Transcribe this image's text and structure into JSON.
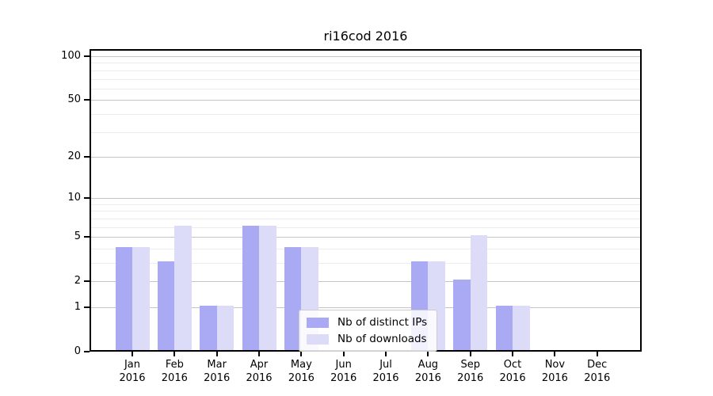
{
  "title": "ri16cod 2016",
  "chart_data": {
    "type": "bar",
    "title": "ri16cod 2016",
    "categories": [
      "Jan",
      "Feb",
      "Mar",
      "Apr",
      "May",
      "Jun",
      "Jul",
      "Aug",
      "Sep",
      "Oct",
      "Nov",
      "Dec"
    ],
    "year": "2016",
    "series": [
      {
        "name": "Nb of distinct IPs",
        "color": "#a9a9f4",
        "values": [
          4,
          3,
          1,
          6,
          4,
          0,
          0,
          3,
          2,
          1,
          0,
          0
        ]
      },
      {
        "name": "Nb of downloads",
        "color": "#dcdcf8",
        "values": [
          4,
          6,
          1,
          6,
          4,
          0,
          0,
          3,
          5,
          1,
          0,
          0
        ]
      }
    ],
    "xlabel": "",
    "ylabel": "",
    "yscale": "log1p",
    "ylim": [
      0,
      112
    ],
    "yticks_major": [
      0,
      1,
      2,
      5,
      10,
      20,
      50,
      100
    ],
    "yticks_minor": [
      3,
      4,
      6,
      7,
      8,
      9,
      30,
      40,
      60,
      70,
      80,
      90
    ],
    "grid": "horizontal, major and minor",
    "legend_position": "lower center"
  },
  "colors": {
    "grid_major": "#c4c4c4",
    "grid_minor": "#ededed",
    "spine": "#000000",
    "background": "#ffffff"
  }
}
